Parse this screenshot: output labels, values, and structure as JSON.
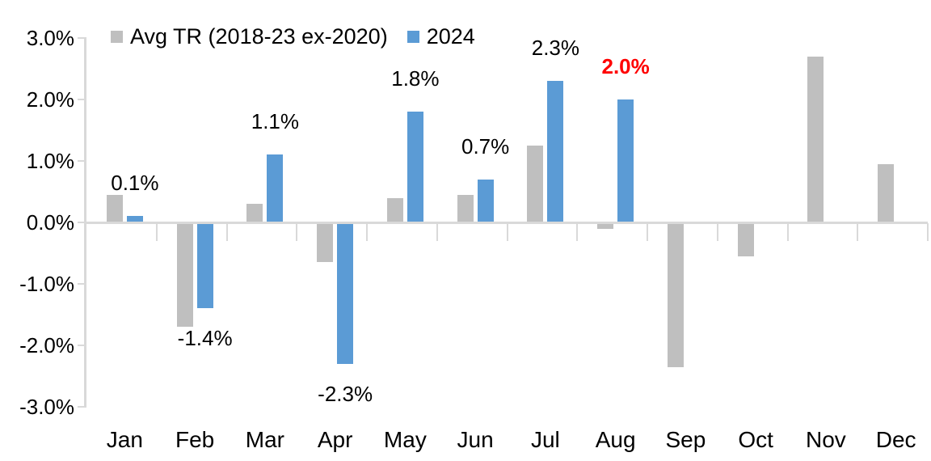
{
  "chart_data": {
    "type": "bar",
    "title": "",
    "categories": [
      "Jan",
      "Feb",
      "Mar",
      "Apr",
      "May",
      "Jun",
      "Jul",
      "Aug",
      "Sep",
      "Oct",
      "Nov",
      "Dec"
    ],
    "series": [
      {
        "name": "Avg TR (2018-23 ex-2020)",
        "color": "#BFBFBF",
        "values": [
          0.45,
          -1.7,
          0.3,
          -0.65,
          0.4,
          0.45,
          1.25,
          -0.1,
          -2.35,
          -0.55,
          2.7,
          0.95
        ]
      },
      {
        "name": "2024",
        "color": "#5B9BD5",
        "values": [
          0.1,
          -1.4,
          1.1,
          -2.3,
          1.8,
          0.7,
          2.3,
          2.0,
          null,
          null,
          null,
          null
        ]
      }
    ],
    "data_labels": [
      {
        "text": "0.1%",
        "color": "#000000",
        "bold": false
      },
      {
        "text": "-1.4%",
        "color": "#000000",
        "bold": false
      },
      {
        "text": "1.1%",
        "color": "#000000",
        "bold": false
      },
      {
        "text": "-2.3%",
        "color": "#000000",
        "bold": false
      },
      {
        "text": "1.8%",
        "color": "#000000",
        "bold": false
      },
      {
        "text": "0.7%",
        "color": "#000000",
        "bold": false
      },
      {
        "text": "2.3%",
        "color": "#000000",
        "bold": false
      },
      {
        "text": "2.0%",
        "color": "#FF0000",
        "bold": true
      },
      null,
      null,
      null,
      null
    ],
    "yticks": [
      "3.0%",
      "2.0%",
      "1.0%",
      "0.0%",
      "-1.0%",
      "-2.0%",
      "-3.0%"
    ],
    "ylim": [
      -3.0,
      3.0
    ],
    "xlabel": "",
    "ylabel": "",
    "grid": false,
    "legend_position": "top",
    "axis_color": "#D9D9D9",
    "background": "#FFFFFF",
    "text_color": "#000000",
    "highlight_color": "#FF0000"
  }
}
